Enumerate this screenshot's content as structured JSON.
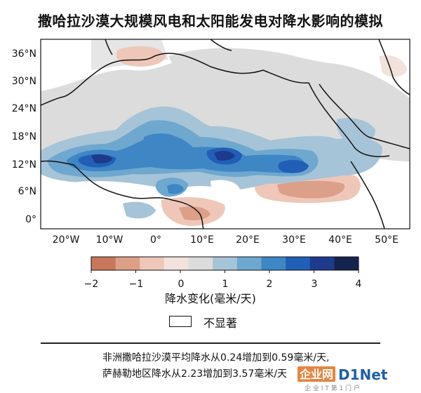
{
  "title": "撒哈拉沙漠大规模风电和太阳能发电对降水影响的模拟",
  "map": {
    "lat_labels": [
      "36°N",
      "30°N",
      "24°N",
      "18°N",
      "12°N",
      "6°N",
      "0°"
    ],
    "lon_labels": [
      "20°W",
      "10°W",
      "0°",
      "10°E",
      "20°E",
      "30°E",
      "40°E",
      "50°E"
    ]
  },
  "colorbar": {
    "tick_labels": [
      "−2",
      "−1",
      "0",
      "1",
      "2",
      "3",
      "4"
    ],
    "colors": [
      "#c8775c",
      "#dc9f87",
      "#eec7b9",
      "#f2e2dc",
      "#dcdcdc",
      "#a6c4d7",
      "#6fa8cf",
      "#3f86c4",
      "#215fb6",
      "#1e3a8c",
      "#15234f"
    ],
    "caption": "降水变化(毫米/天)"
  },
  "legend": {
    "not_significant": "不显著"
  },
  "notes": {
    "line1": "非洲撒哈拉沙漠平均降水从0.24增加到0.59毫米/天,",
    "line2": "萨赫勒地区降水从2.23增加到3.57毫米/天"
  },
  "watermark": {
    "brand": "企业网",
    "brand2": "D1Net",
    "subtitle": "企 业 I T 第 1 门 户"
  }
}
